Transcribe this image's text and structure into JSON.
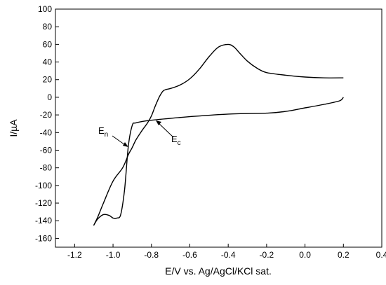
{
  "chart_data": {
    "type": "line",
    "title": "",
    "xlabel": "E/V vs. Ag/AgCl/KCl sat.",
    "ylabel": "I/µA",
    "xlim": [
      -1.3,
      0.4
    ],
    "ylim": [
      -170,
      100
    ],
    "x_ticks": [
      -1.2,
      -1.0,
      -0.8,
      -0.6,
      -0.4,
      -0.2,
      0.0,
      0.2,
      0.4
    ],
    "x_tick_labels": [
      "-1.2",
      "-1.0",
      "-0.8",
      "-0.6",
      "-0.4",
      "-0.2",
      "0.0",
      "0.2",
      "0.4"
    ],
    "y_ticks": [
      -160,
      -140,
      -120,
      -100,
      -80,
      -60,
      -40,
      -20,
      0,
      20,
      40,
      60,
      80,
      100
    ],
    "y_tick_labels": [
      "-160",
      "-140",
      "-120",
      "-100",
      "-80",
      "-60",
      "-40",
      "-20",
      "0",
      "20",
      "40",
      "60",
      "80",
      "100"
    ],
    "grid": false,
    "legend": "none",
    "line_color": "#000000",
    "series": [
      {
        "x": [
          0.2,
          0.18,
          0.1,
          0.0,
          -0.1,
          -0.2,
          -0.4,
          -0.6,
          -0.8,
          -0.88,
          -0.9,
          -0.92,
          -0.94,
          -0.96,
          -0.98,
          -1.0,
          -1.02,
          -1.05,
          -1.08,
          -1.1,
          -1.08,
          -1.05,
          -1.0,
          -0.95,
          -0.92,
          -0.9,
          -0.88,
          -0.85,
          -0.82,
          -0.8,
          -0.78,
          -0.76,
          -0.74,
          -0.72,
          -0.7,
          -0.65,
          -0.6,
          -0.55,
          -0.5,
          -0.45,
          -0.4,
          -0.37,
          -0.34,
          -0.3,
          -0.25,
          -0.2,
          -0.1,
          0.0,
          0.1,
          0.2
        ],
        "y": [
          0,
          -4,
          -8,
          -12,
          -16,
          -18,
          -19,
          -22,
          -26,
          -29,
          -32,
          -55,
          -105,
          -133,
          -137,
          -137,
          -134,
          -133,
          -138,
          -145,
          -136,
          -120,
          -95,
          -80,
          -65,
          -57,
          -48,
          -38,
          -29,
          -21,
          -10,
          0,
          7,
          9,
          10,
          14,
          21,
          32,
          46,
          57,
          60,
          57,
          50,
          41,
          33,
          28,
          25,
          23,
          22,
          22
        ]
      }
    ],
    "annotations": [
      {
        "text": "E",
        "sub": "n",
        "x": -0.85,
        "y": -60
      },
      {
        "text": "E",
        "sub": "c",
        "x": -0.78,
        "y": -27
      }
    ]
  }
}
